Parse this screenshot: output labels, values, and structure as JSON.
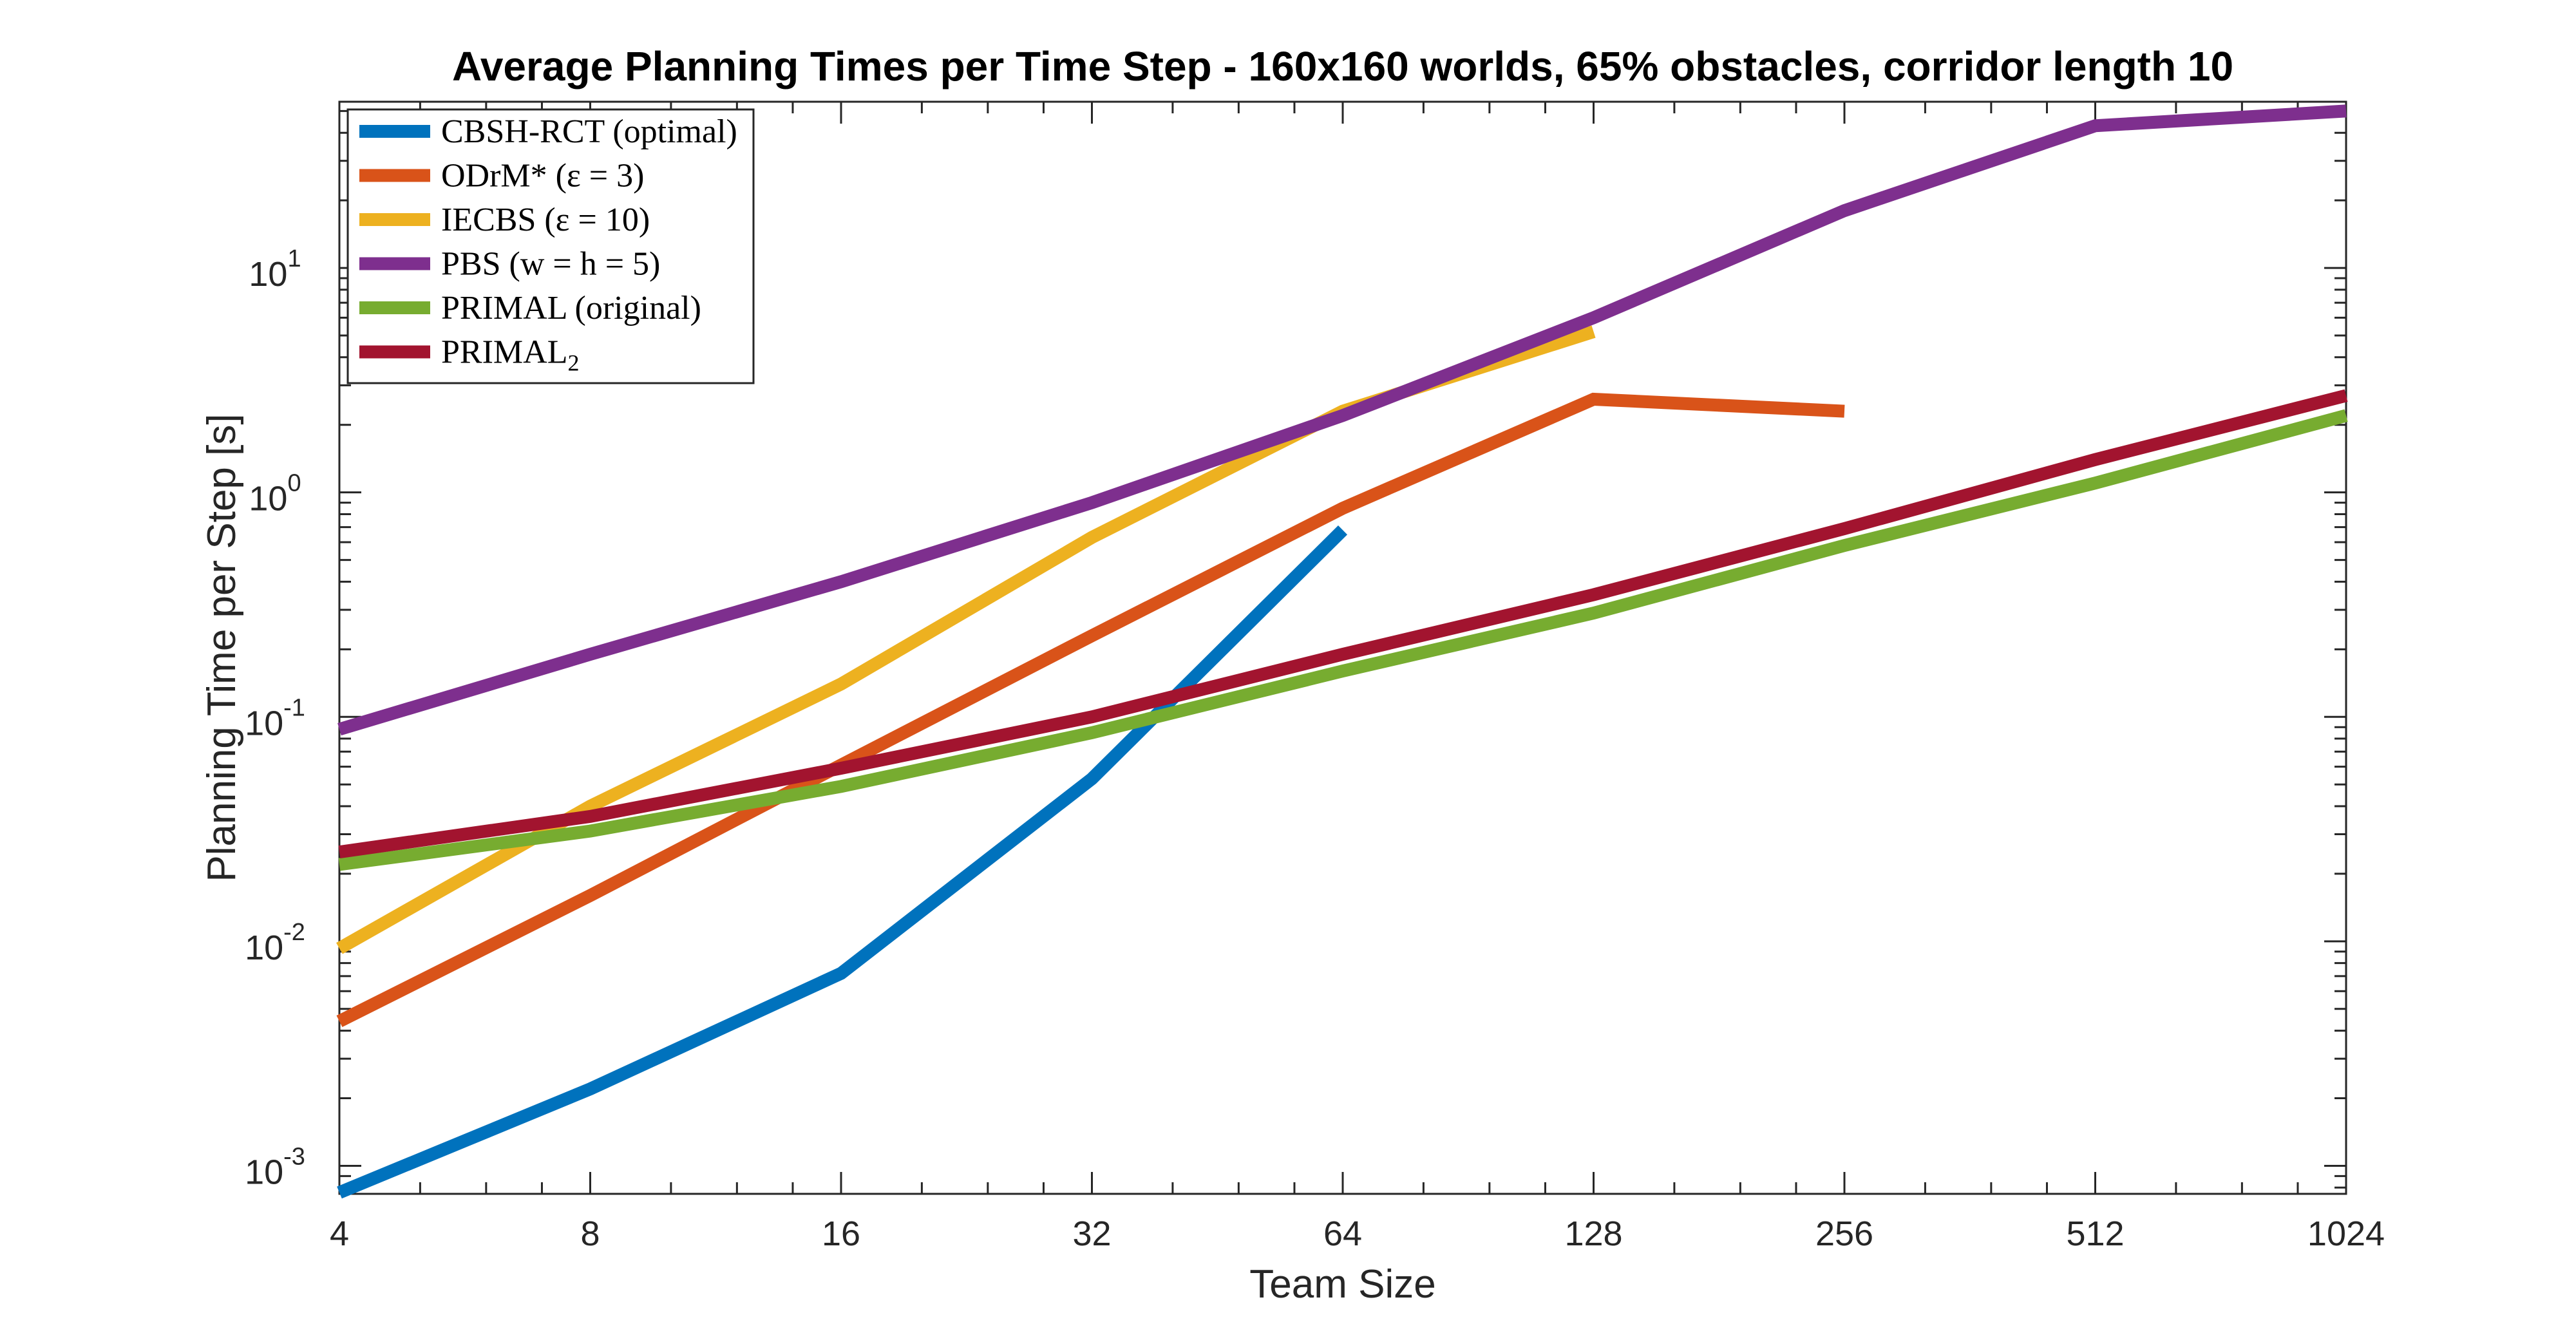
{
  "chart_data": {
    "type": "line",
    "title": "Average Planning Times per Time Step - 160x160 worlds, 65% obstacles, corridor length 10",
    "xlabel": "Team Size",
    "ylabel": "Planning Time per Step [s]",
    "xscale": "log2",
    "yscale": "log10",
    "xlim": [
      4,
      1024
    ],
    "ylim": [
      0.00075,
      55
    ],
    "xticks": [
      4,
      8,
      16,
      32,
      64,
      128,
      256,
      512,
      1024
    ],
    "xtick_labels": [
      "4",
      "8",
      "16",
      "32",
      "64",
      "128",
      "256",
      "512",
      "1024"
    ],
    "yticks": [
      0.001,
      0.01,
      0.1,
      1,
      10
    ],
    "ytick_labels": [
      {
        "base": "10",
        "exp": "-3"
      },
      {
        "base": "10",
        "exp": "-2"
      },
      {
        "base": "10",
        "exp": "-1"
      },
      {
        "base": "10",
        "exp": "0"
      },
      {
        "base": "10",
        "exp": "1"
      }
    ],
    "grid": false,
    "legend_position": "top-left",
    "series": [
      {
        "name": "CBSH-RCT (optimal)",
        "color": "#0072BD",
        "x": [
          4,
          8,
          16,
          32,
          64
        ],
        "y": [
          0.00076,
          0.0022,
          0.0072,
          0.053,
          0.68
        ]
      },
      {
        "name": "ODrM* (ε = 3)",
        "color": "#D95319",
        "x": [
          4,
          8,
          16,
          32,
          64,
          128,
          256
        ],
        "y": [
          0.0044,
          0.016,
          0.061,
          0.23,
          0.85,
          2.6,
          2.3
        ]
      },
      {
        "name": "IECBS (ε = 10)",
        "color": "#EDB120",
        "x": [
          4,
          8,
          16,
          32,
          64,
          128
        ],
        "y": [
          0.0093,
          0.04,
          0.14,
          0.63,
          2.3,
          5.2
        ]
      },
      {
        "name": "PBS (w = h = 5)",
        "color": "#7E2F8E",
        "x": [
          4,
          8,
          16,
          32,
          64,
          128,
          256,
          512,
          1024
        ],
        "y": [
          0.088,
          0.19,
          0.4,
          0.9,
          2.2,
          6.0,
          18,
          43,
          50
        ]
      },
      {
        "name": "PRIMAL (original)",
        "color": "#77AC30",
        "x": [
          4,
          8,
          16,
          32,
          64,
          128,
          256,
          512,
          1024
        ],
        "y": [
          0.022,
          0.031,
          0.049,
          0.085,
          0.16,
          0.29,
          0.58,
          1.1,
          2.2
        ]
      },
      {
        "name": "PRIMAL2",
        "legend_base": "PRIMAL",
        "legend_sub": "2",
        "color": "#A2142F",
        "x": [
          4,
          8,
          16,
          32,
          64,
          128,
          256,
          512,
          1024
        ],
        "y": [
          0.025,
          0.036,
          0.059,
          0.1,
          0.19,
          0.35,
          0.69,
          1.4,
          2.7
        ]
      }
    ]
  }
}
